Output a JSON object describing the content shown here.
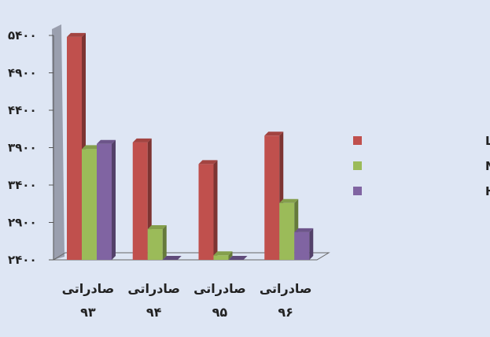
{
  "chart_data": {
    "type": "bar",
    "categories": [
      "صادراتی\n۹۳",
      "صادراتی\n۹۴",
      "صادراتی\n۹۵",
      "صادراتی\n۹۶"
    ],
    "series": [
      {
        "name": "قیمت صادراتی LAB",
        "color": "#c0504d",
        "values": [
          5380,
          3970,
          3680,
          4060
        ]
      },
      {
        "name": "قیمت صادراتی NP",
        "color": "#9bbb59",
        "values": [
          3880,
          2810,
          2460,
          3160
        ]
      },
      {
        "name": "قیمت صادراتی HAB",
        "color": "#8064a2",
        "values": [
          3950,
          2400,
          2400,
          2770
        ]
      }
    ],
    "y_ticks": [
      "۵۴۰۰",
      "۴۹۰۰",
      "۴۴۰۰",
      "۳۹۰۰",
      "۳۴۰۰",
      "۲۹۰۰",
      "۲۴۰۰"
    ],
    "ylim": [
      2400,
      5400
    ],
    "grid": false,
    "legend_position": "right"
  }
}
